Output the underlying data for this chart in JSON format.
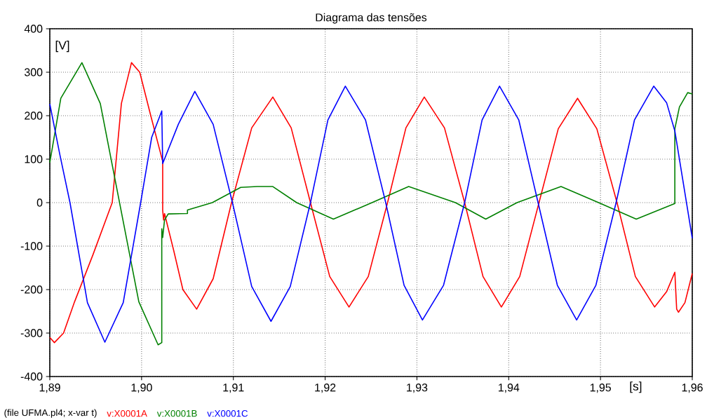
{
  "chart_data": {
    "type": "line",
    "title": "Diagrama das tensões",
    "xlabel": "[s]",
    "ylabel": "[V]",
    "xlim": [
      1.89,
      1.96
    ],
    "ylim": [
      -400,
      400
    ],
    "xticks": [
      {
        "value": 1.89,
        "label": "1,89"
      },
      {
        "value": 1.9,
        "label": "1,90"
      },
      {
        "value": 1.91,
        "label": "1,91"
      },
      {
        "value": 1.92,
        "label": "1,92"
      },
      {
        "value": 1.93,
        "label": "1,93"
      },
      {
        "value": 1.94,
        "label": "1,94"
      },
      {
        "value": 1.95,
        "label": "1,95"
      },
      {
        "value": 1.96,
        "label": "1,96"
      }
    ],
    "yticks": [
      -400,
      -300,
      -200,
      -100,
      0,
      100,
      200,
      300,
      400
    ],
    "grid": true,
    "legend": "bottom",
    "line_style": "solid",
    "annotations": [
      "(file UFMA.pl4; x-var t)"
    ],
    "series": [
      {
        "name": "v:X0001A",
        "color": "#ff0000",
        "x": [
          1.89,
          1.8905,
          1.8915,
          1.8927,
          1.8947,
          1.8968,
          1.8978,
          1.8989,
          1.8998,
          1.901,
          1.9023,
          1.9023,
          1.9024,
          1.9025,
          1.9035,
          1.9045,
          1.906,
          1.9078,
          1.9098,
          1.912,
          1.9143,
          1.9163,
          1.9184,
          1.9205,
          1.9226,
          1.9247,
          1.9268,
          1.9288,
          1.9308,
          1.933,
          1.9352,
          1.9372,
          1.9392,
          1.9412,
          1.9433,
          1.9454,
          1.9475,
          1.9496,
          1.9518,
          1.9538,
          1.9559,
          1.9572,
          1.9581,
          1.9583,
          1.9585,
          1.9592,
          1.96
        ],
        "values": [
          -310,
          -322,
          -300,
          -228,
          -120,
          0,
          228,
          322,
          300,
          200,
          95,
          -18,
          -40,
          -25,
          -110,
          -200,
          -245,
          -175,
          0,
          172,
          243,
          172,
          0,
          -170,
          -240,
          -170,
          0,
          172,
          243,
          172,
          0,
          -170,
          -240,
          -170,
          0,
          170,
          240,
          170,
          0,
          -170,
          -240,
          -205,
          -160,
          -245,
          -252,
          -230,
          -163
        ]
      },
      {
        "name": "v:X0001B",
        "color": "#008000",
        "x": [
          1.89,
          1.8912,
          1.8935,
          1.8955,
          1.8976,
          1.8997,
          1.9018,
          1.9022,
          1.9022,
          1.9023,
          1.9025,
          1.9029,
          1.905,
          1.905,
          1.9077,
          1.9108,
          1.9126,
          1.9143,
          1.9169,
          1.9209,
          1.9251,
          1.9291,
          1.9342,
          1.9375,
          1.9409,
          1.9457,
          1.9498,
          1.9539,
          1.9581,
          1.9581,
          1.9586,
          1.9595,
          1.96
        ],
        "values": [
          92,
          240,
          322,
          228,
          0,
          -228,
          -327,
          -322,
          -60,
          -80,
          -40,
          -26,
          -25,
          -17,
          0,
          35,
          37,
          37,
          0,
          -38,
          0,
          37,
          0,
          -38,
          0,
          37,
          0,
          -38,
          -2,
          170,
          220,
          253,
          250
        ]
      },
      {
        "name": "v:X0001C",
        "color": "#0000ff",
        "x": [
          1.89,
          1.8911,
          1.8922,
          1.8941,
          1.896,
          1.898,
          1.8999,
          1.9011,
          1.9022,
          1.9023,
          1.904,
          1.9058,
          1.9078,
          1.9099,
          1.912,
          1.9141,
          1.9162,
          1.9184,
          1.9203,
          1.9222,
          1.9244,
          1.9266,
          1.9286,
          1.9306,
          1.9329,
          1.9352,
          1.9371,
          1.939,
          1.9411,
          1.9432,
          1.9453,
          1.9474,
          1.9495,
          1.9517,
          1.9537,
          1.9558,
          1.9572,
          1.9581,
          1.96
        ],
        "values": [
          227,
          110,
          0,
          -230,
          -321,
          -230,
          0,
          150,
          211,
          90,
          180,
          256,
          180,
          0,
          -193,
          -273,
          -193,
          0,
          190,
          268,
          190,
          0,
          -190,
          -270,
          -190,
          0,
          190,
          268,
          190,
          0,
          -190,
          -270,
          -190,
          0,
          190,
          268,
          230,
          165,
          -82
        ]
      }
    ]
  }
}
